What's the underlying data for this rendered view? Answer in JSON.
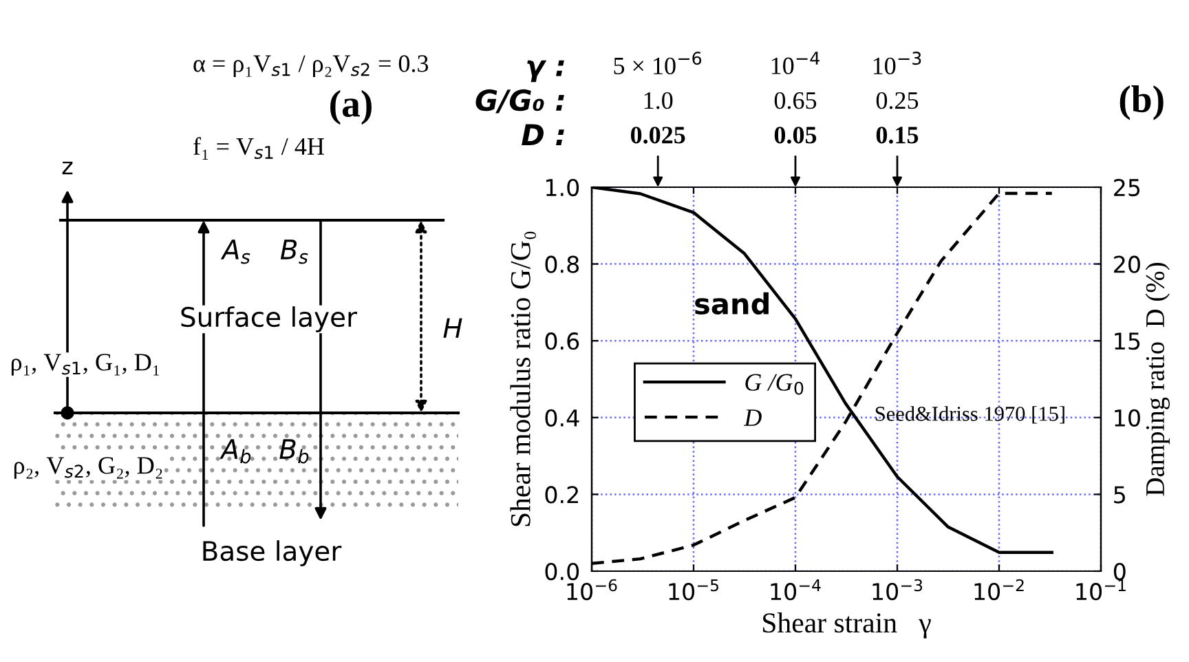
{
  "chart_data": [
    {
      "type": "other",
      "title": "(a)",
      "annotations": [
        "α = ρ₁V$_{s1}$ / ρ₂V$_{s2}$ = 0.3",
        "f₁ = V$_{s1}$ / 4H",
        "z",
        "A$_{s}$",
        "B$_{s}$",
        "Surface layer",
        "H",
        "ρ₁, V$_{s1}$, G₁, D₁",
        "A$_{b}$",
        "B$_{b}$",
        "ρ₂, V$_{s2}$, G₂, D₂",
        "Base layer"
      ]
    },
    {
      "type": "line",
      "title": "(b)",
      "xlabel": "Shear strain   γ",
      "ylabel": "Shear modulus ratio G/G₀",
      "y2label": "Damping ratio  D (%)",
      "log": "x",
      "grid": true,
      "legend": "center left",
      "marker": "none",
      "xlim": [
        1e-06,
        0.1
      ],
      "xticks": [
        {
          "value": 1e-06,
          "label": "10$^{−6}$"
        },
        {
          "value": 1e-05,
          "label": "10$^{−5}$"
        },
        {
          "value": 0.0001,
          "label": "10$^{−4}$"
        },
        {
          "value": 0.001,
          "label": "10$^{−3}$"
        },
        {
          "value": 0.01,
          "label": "10$^{−2}$"
        },
        {
          "value": 0.1,
          "label": "10$^{−1}$"
        }
      ],
      "ylim": [
        0,
        1
      ],
      "yticks": [
        {
          "value": 0,
          "label": "0.0"
        },
        0.2,
        0.4,
        0.6,
        0.8,
        {
          "value": 1,
          "label": "1.0"
        }
      ],
      "y2lim": [
        0,
        25
      ],
      "y2ticks": [
        0,
        5,
        10,
        15,
        20,
        25
      ],
      "x": [
        1e-06,
        3e-06,
        1e-05,
        3.16e-05,
        0.0001,
        0.00031,
        0.001,
        0.00316,
        0.01,
        0.033
      ],
      "series": [
        {
          "name": "G /G$_{0}$",
          "color": "#000000",
          "line_style": "solid",
          "values": [
            1.0,
            0.983,
            0.934,
            0.827,
            0.657,
            0.437,
            0.246,
            0.115,
            0.049,
            0.049
          ]
        },
        {
          "name": "D",
          "color": "#000000",
          "line_style": "dashed",
          "axis": "y2",
          "x": [
            1e-06,
            3e-06,
            1e-05,
            3.16e-05,
            0.0001,
            0.00031,
            0.001,
            0.0027,
            0.01,
            0.033
          ],
          "values": [
            0.5,
            0.8,
            1.7,
            3.3,
            4.8,
            9.7,
            15.5,
            20.2,
            24.6,
            24.6
          ]
        }
      ],
      "annotations": [
        "γ :",
        "5 × 10$^{−6}$",
        "10$^{−4}$",
        "10$^{−3}$",
        "G/G₀ :",
        "1.0",
        "0.65",
        "0.25",
        "D :",
        "0.025",
        "0.05",
        "0.15",
        "sand",
        "Seed&Idriss 1970 [15]"
      ]
    }
  ]
}
